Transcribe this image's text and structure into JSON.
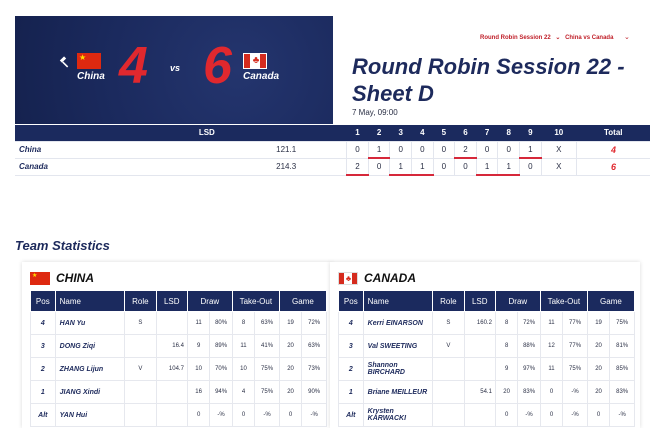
{
  "header": {
    "team_a": "China",
    "team_b": "Canada",
    "score_a": "4",
    "score_b": "6",
    "vs": "vs",
    "hammer_icon": "hammer-icon"
  },
  "breadcrumb": {
    "session": "Round Robin Session 22",
    "game": "China vs Canada"
  },
  "title": "Round Robin Session 22 - Sheet D",
  "date": "7 May, 09:00",
  "linescore": {
    "headers": [
      "",
      "LSD",
      "1",
      "2",
      "3",
      "4",
      "5",
      "6",
      "7",
      "8",
      "9",
      "10",
      "Total"
    ],
    "rows": [
      {
        "team": "China",
        "lsd": "121.1",
        "ends": [
          "0",
          "1",
          "0",
          "0",
          "0",
          "2",
          "0",
          "0",
          "1",
          "X"
        ],
        "total": "4"
      },
      {
        "team": "Canada",
        "lsd": "214.3",
        "ends": [
          "2",
          "0",
          "1",
          "1",
          "0",
          "0",
          "1",
          "1",
          "0",
          "X"
        ],
        "total": "6"
      }
    ]
  },
  "stats": {
    "title": "Team Statistics",
    "headers": {
      "pos": "Pos",
      "name": "Name",
      "role": "Role",
      "lsd": "LSD",
      "draw": "Draw",
      "takeout": "Take-Out",
      "game": "Game"
    },
    "teams": [
      {
        "name": "CHINA",
        "players": [
          {
            "pos": "4",
            "name": "HAN Yu",
            "role": "S",
            "lsd": "",
            "d1": "11",
            "d2": "80%",
            "t1": "8",
            "t2": "63%",
            "g1": "19",
            "g2": "72%"
          },
          {
            "pos": "3",
            "name": "DONG Ziqi",
            "role": "",
            "lsd": "16.4",
            "d1": "9",
            "d2": "89%",
            "t1": "11",
            "t2": "41%",
            "g1": "20",
            "g2": "63%"
          },
          {
            "pos": "2",
            "name": "ZHANG Lijun",
            "role": "V",
            "lsd": "104.7",
            "d1": "10",
            "d2": "70%",
            "t1": "10",
            "t2": "75%",
            "g1": "20",
            "g2": "73%"
          },
          {
            "pos": "1",
            "name": "JIANG Xindi",
            "role": "",
            "lsd": "",
            "d1": "16",
            "d2": "94%",
            "t1": "4",
            "t2": "75%",
            "g1": "20",
            "g2": "90%"
          },
          {
            "pos": "Alt",
            "name": "YAN Hui",
            "role": "",
            "lsd": "",
            "d1": "0",
            "d2": "-%",
            "t1": "0",
            "t2": "-%",
            "g1": "0",
            "g2": "-%"
          }
        ]
      },
      {
        "name": "CANADA",
        "players": [
          {
            "pos": "4",
            "name": "Kerri EINARSON",
            "role": "S",
            "lsd": "160.2",
            "d1": "8",
            "d2": "72%",
            "t1": "11",
            "t2": "77%",
            "g1": "19",
            "g2": "75%"
          },
          {
            "pos": "3",
            "name": "Val SWEETING",
            "role": "V",
            "lsd": "",
            "d1": "8",
            "d2": "88%",
            "t1": "12",
            "t2": "77%",
            "g1": "20",
            "g2": "81%"
          },
          {
            "pos": "2",
            "name": "Shannon BIRCHARD",
            "role": "",
            "lsd": "",
            "d1": "9",
            "d2": "97%",
            "t1": "11",
            "t2": "75%",
            "g1": "20",
            "g2": "85%"
          },
          {
            "pos": "1",
            "name": "Briane MEILLEUR",
            "role": "",
            "lsd": "54.1",
            "d1": "20",
            "d2": "83%",
            "t1": "0",
            "t2": "-%",
            "g1": "20",
            "g2": "83%"
          },
          {
            "pos": "Alt",
            "name": "Krysten KARWACKI",
            "role": "",
            "lsd": "",
            "d1": "0",
            "d2": "-%",
            "t1": "0",
            "t2": "-%",
            "g1": "0",
            "g2": "-%"
          }
        ]
      }
    ]
  },
  "colors": {
    "navy": "#1b2a5e",
    "red": "#e0282e"
  }
}
